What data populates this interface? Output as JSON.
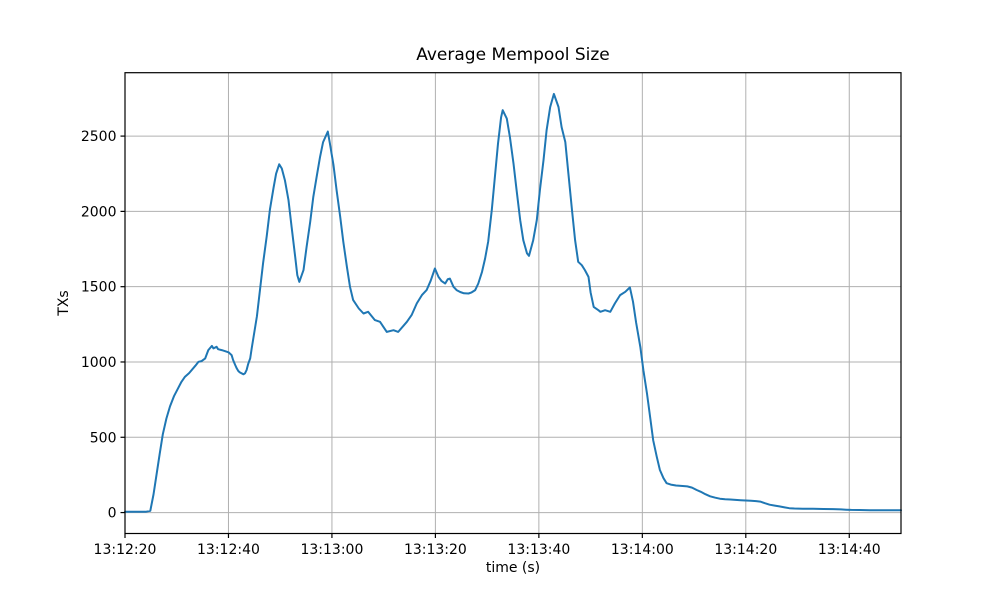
{
  "chart_data": {
    "type": "line",
    "title": "Average Mempool Size",
    "xlabel": "time (s)",
    "ylabel": "TXs",
    "x_start_time": "13:12:20",
    "x_tick_labels": [
      "13:12:20",
      "13:12:40",
      "13:13:00",
      "13:13:20",
      "13:13:40",
      "13:14:00",
      "13:14:20",
      "13:14:40"
    ],
    "x_tick_seconds": [
      0,
      20,
      40,
      60,
      80,
      100,
      120,
      140
    ],
    "x_range_seconds": [
      0,
      150
    ],
    "y_ticks": [
      0,
      500,
      1000,
      1500,
      2000,
      2500
    ],
    "ylim": [
      -139,
      2921
    ],
    "grid": true,
    "legend_position": "none",
    "line_color": "#1f77b4",
    "grid_color": "#b0b0b0",
    "axis_color": "#000000",
    "background_color": "#ffffff",
    "series": [
      {
        "name": "average mempool size (TXs)",
        "points_t_seconds_value_txs": [
          [
            0,
            5
          ],
          [
            2,
            5
          ],
          [
            4,
            5
          ],
          [
            4.9,
            12
          ],
          [
            5.5,
            120
          ],
          [
            6.1,
            255
          ],
          [
            6.7,
            390
          ],
          [
            7.3,
            520
          ],
          [
            8,
            625
          ],
          [
            8.7,
            705
          ],
          [
            9.5,
            775
          ],
          [
            10.2,
            822
          ],
          [
            10.9,
            868
          ],
          [
            11.6,
            902
          ],
          [
            12.4,
            926
          ],
          [
            13.6,
            975
          ],
          [
            14.2,
            1001
          ],
          [
            14.8,
            1006
          ],
          [
            15.5,
            1024
          ],
          [
            16.1,
            1079
          ],
          [
            16.8,
            1107
          ],
          [
            17.1,
            1090
          ],
          [
            17.7,
            1101
          ],
          [
            18,
            1085
          ],
          [
            18.7,
            1079
          ],
          [
            19.3,
            1072
          ],
          [
            20,
            1064
          ],
          [
            20.6,
            1046
          ],
          [
            20.9,
            1013
          ],
          [
            21.3,
            980
          ],
          [
            21.6,
            958
          ],
          [
            21.9,
            940
          ],
          [
            22.2,
            931
          ],
          [
            22.9,
            918
          ],
          [
            23.2,
            925
          ],
          [
            23.5,
            947
          ],
          [
            23.8,
            985
          ],
          [
            24.2,
            1024
          ],
          [
            24.5,
            1090
          ],
          [
            24.8,
            1156
          ],
          [
            25.5,
            1303
          ],
          [
            26.1,
            1480
          ],
          [
            26.7,
            1657
          ],
          [
            27.4,
            1834
          ],
          [
            28,
            2011
          ],
          [
            28.7,
            2155
          ],
          [
            29.2,
            2250
          ],
          [
            29.8,
            2313
          ],
          [
            30.3,
            2285
          ],
          [
            30.9,
            2207
          ],
          [
            31.6,
            2074
          ],
          [
            32.2,
            1897
          ],
          [
            32.9,
            1698
          ],
          [
            33.3,
            1577
          ],
          [
            33.7,
            1532
          ],
          [
            34.5,
            1610
          ],
          [
            35.1,
            1764
          ],
          [
            35.8,
            1930
          ],
          [
            36.4,
            2096
          ],
          [
            37.1,
            2240
          ],
          [
            37.7,
            2360
          ],
          [
            38.3,
            2460
          ],
          [
            39.2,
            2530
          ],
          [
            39.6,
            2451
          ],
          [
            40.3,
            2307
          ],
          [
            40.9,
            2141
          ],
          [
            41.6,
            1964
          ],
          [
            42.2,
            1798
          ],
          [
            42.9,
            1632
          ],
          [
            43.5,
            1499
          ],
          [
            44.1,
            1412
          ],
          [
            45.2,
            1355
          ],
          [
            46.1,
            1322
          ],
          [
            47,
            1333
          ],
          [
            48.3,
            1278
          ],
          [
            49.3,
            1267
          ],
          [
            50.6,
            1200
          ],
          [
            51.9,
            1211
          ],
          [
            52.8,
            1200
          ],
          [
            54.5,
            1267
          ],
          [
            55.4,
            1311
          ],
          [
            56.4,
            1389
          ],
          [
            57.4,
            1444
          ],
          [
            58.3,
            1477
          ],
          [
            59.1,
            1540
          ],
          [
            59.9,
            1621
          ],
          [
            60.6,
            1565
          ],
          [
            61.2,
            1537
          ],
          [
            61.9,
            1521
          ],
          [
            62.4,
            1550
          ],
          [
            62.8,
            1554
          ],
          [
            63.5,
            1499
          ],
          [
            64.1,
            1477
          ],
          [
            64.8,
            1465
          ],
          [
            65.5,
            1456
          ],
          [
            66.4,
            1455
          ],
          [
            67,
            1462
          ],
          [
            67.7,
            1477
          ],
          [
            68.3,
            1521
          ],
          [
            69,
            1598
          ],
          [
            69.6,
            1687
          ],
          [
            70.2,
            1800
          ],
          [
            70.9,
            2010
          ],
          [
            71.5,
            2230
          ],
          [
            72.1,
            2450
          ],
          [
            72.7,
            2625
          ],
          [
            73,
            2672
          ],
          [
            73.8,
            2616
          ],
          [
            74.4,
            2494
          ],
          [
            75.1,
            2318
          ],
          [
            75.7,
            2141
          ],
          [
            76.4,
            1942
          ],
          [
            77,
            1809
          ],
          [
            77.7,
            1721
          ],
          [
            78.1,
            1705
          ],
          [
            78.9,
            1809
          ],
          [
            79.6,
            1942
          ],
          [
            80.2,
            2141
          ],
          [
            80.9,
            2340
          ],
          [
            81.5,
            2539
          ],
          [
            82.2,
            2693
          ],
          [
            82.9,
            2780
          ],
          [
            83.8,
            2693
          ],
          [
            84.4,
            2560
          ],
          [
            85.1,
            2461
          ],
          [
            85.7,
            2251
          ],
          [
            86.4,
            2008
          ],
          [
            87,
            1809
          ],
          [
            87.6,
            1665
          ],
          [
            88.3,
            1643
          ],
          [
            88.9,
            1610
          ],
          [
            89.6,
            1565
          ],
          [
            90,
            1462
          ],
          [
            90.6,
            1366
          ],
          [
            91.5,
            1344
          ],
          [
            91.9,
            1333
          ],
          [
            92.8,
            1344
          ],
          [
            93.8,
            1333
          ],
          [
            94.7,
            1389
          ],
          [
            95.7,
            1444
          ],
          [
            96.7,
            1466
          ],
          [
            97.6,
            1495
          ],
          [
            98.2,
            1400
          ],
          [
            98.8,
            1262
          ],
          [
            99.6,
            1101
          ],
          [
            100.2,
            945
          ],
          [
            100.9,
            790
          ],
          [
            101.5,
            635
          ],
          [
            102.1,
            480
          ],
          [
            102.8,
            370
          ],
          [
            103.4,
            283
          ],
          [
            104.1,
            228
          ],
          [
            104.7,
            195
          ],
          [
            105.5,
            186
          ],
          [
            106.5,
            180
          ],
          [
            107.5,
            177
          ],
          [
            108.7,
            174
          ],
          [
            109.6,
            166
          ],
          [
            110.5,
            150
          ],
          [
            111.3,
            138
          ],
          [
            112.2,
            122
          ],
          [
            113.1,
            108
          ],
          [
            114.1,
            99
          ],
          [
            115,
            92
          ],
          [
            116,
            89
          ],
          [
            117,
            87
          ],
          [
            118,
            84
          ],
          [
            119,
            82
          ],
          [
            120,
            80
          ],
          [
            121,
            78
          ],
          [
            122,
            76
          ],
          [
            122.8,
            73
          ],
          [
            123.7,
            62
          ],
          [
            124.6,
            52
          ],
          [
            125.6,
            46
          ],
          [
            126.5,
            41
          ],
          [
            127.5,
            34
          ],
          [
            128.4,
            29
          ],
          [
            129.4,
            27
          ],
          [
            131,
            26
          ],
          [
            133,
            26
          ],
          [
            135,
            24
          ],
          [
            136.9,
            23
          ],
          [
            138.4,
            21
          ],
          [
            139.4,
            19
          ],
          [
            140.4,
            18
          ],
          [
            142,
            17
          ],
          [
            144,
            16
          ],
          [
            146.5,
            15
          ],
          [
            148.5,
            15
          ],
          [
            150,
            15
          ]
        ]
      }
    ]
  }
}
